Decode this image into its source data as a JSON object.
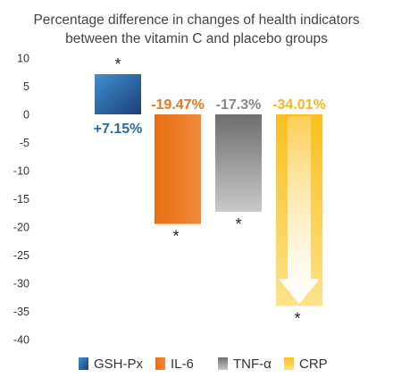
{
  "chart_data": {
    "type": "bar",
    "title": "Percentage difference in changes of health indicators between the vitamin C and placebo groups",
    "title_lines": [
      "Percentage difference in changes of health indicators",
      "between the vitamin C and placebo groups"
    ],
    "categories": [
      "GSH-Px",
      "IL-6",
      "TNF-α",
      "CRP"
    ],
    "values": [
      7.15,
      -19.47,
      -17.3,
      -34.01
    ],
    "data_labels": [
      "+7.15%",
      "-19.47%",
      "-17.3%",
      "-34.01%"
    ],
    "significance_marks": [
      "*",
      "*",
      "*",
      "*"
    ],
    "colors": [
      "#2e5f9a",
      "#e87722",
      "#8f8f8f",
      "#fbc43a"
    ],
    "label_colors": [
      "#2a6aa8",
      "#e87722",
      "#888888",
      "#f4b820"
    ],
    "ylim": [
      -40,
      10
    ],
    "yticks": [
      10,
      5,
      0,
      -5,
      -10,
      -15,
      -20,
      -25,
      -30,
      -35,
      -40
    ],
    "grid": false,
    "legend": {
      "position": "bottom",
      "entries": [
        "GSH-Px",
        "IL-6",
        "TNF-α",
        "CRP"
      ]
    },
    "xlabel": "",
    "ylabel": ""
  }
}
